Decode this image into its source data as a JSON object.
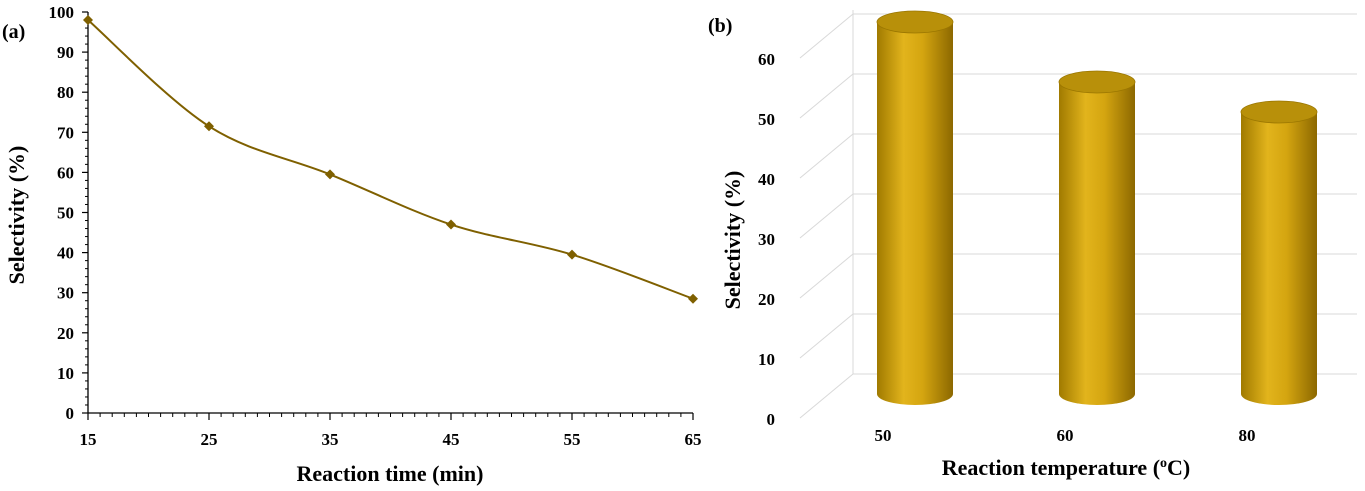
{
  "colors": {
    "line": "#7f6000",
    "marker": "#7f6000",
    "cylinder_light": "#e0b020",
    "cylinder_dark": "#9a7600",
    "cylinder_top": "#b8900a",
    "grid": "#d9d9d9",
    "axis": "#000000"
  },
  "chart_data": [
    {
      "panel_label": "(a)",
      "type": "line",
      "xlabel": "Reaction time (min)",
      "ylabel": "Selectivity (%)",
      "x": [
        15,
        25,
        35,
        45,
        55,
        65
      ],
      "series": [
        {
          "values": [
            98,
            71.5,
            59.5,
            47,
            39.5,
            28.5
          ]
        }
      ],
      "xlim": [
        15,
        65
      ],
      "ylim": [
        0,
        100
      ],
      "x_ticks": [
        "15",
        "25",
        "35",
        "45",
        "55",
        "65"
      ],
      "y_ticks": [
        "0",
        "10",
        "20",
        "30",
        "40",
        "50",
        "60",
        "70",
        "80",
        "90",
        "100"
      ],
      "marker": "diamond",
      "smooth": true,
      "grid": false
    },
    {
      "panel_label": "(b)",
      "type": "bar",
      "style": "3d-cylinder",
      "xlabel": "Reaction temperature (",
      "xlabel_sup": "o",
      "xlabel_end": "C)",
      "ylabel": "Selectivity (%)",
      "categories": [
        "50",
        "60",
        "80"
      ],
      "values": [
        62,
        52,
        47
      ],
      "ylim": [
        0,
        60
      ],
      "y_ticks": [
        "0",
        "10",
        "20",
        "30",
        "40",
        "50",
        "60"
      ],
      "grid": true
    }
  ]
}
